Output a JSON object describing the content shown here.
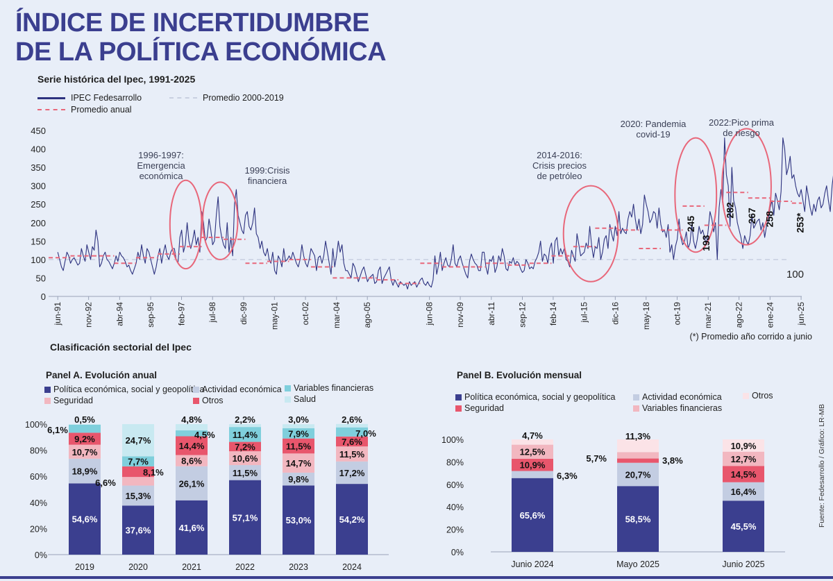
{
  "header": {
    "title_line1": "ÍNDICE DE INCERTIDUMBRE",
    "title_line2": "DE LA POLÍTICA ECONÓMICA",
    "subtitle": "Serie histórica del Ipec, 1991-2025"
  },
  "legend_top": {
    "ipec": "IPEC Fedesarrollo",
    "avg_2000_2019": "Promedio 2000-2019",
    "annual_avg": "Promedio anual"
  },
  "footnote": "(*) Promedio año corrido a junio",
  "section_title": "Clasificación sectorial del Ipec",
  "source": "Fuente: Fedesarrollo / Gráfico: LR-MB",
  "panel_a": {
    "title": "Panel A. Evolución anual",
    "legend": [
      "Política económica, social y geopolítica",
      "Actividad económica",
      "Variables financieras",
      "Seguridad",
      "Otros",
      "Salud"
    ]
  },
  "panel_b": {
    "title": "Panel B. Evolución mensual",
    "legend": [
      "Política económica, social y geopolítica",
      "Actividad económica",
      "Otros",
      "Seguridad",
      "Variables financieras"
    ]
  },
  "colors": {
    "navy": "#3b3f8f",
    "ipec_line": "#2d327f",
    "avg_dash": "#e8677a",
    "avg2000_dash": "#c8cfe0",
    "circle": "#e8677a",
    "politica": "#3b3f8f",
    "actividad": "#c3cde2",
    "financieras": "#7fcfdc",
    "seguridad": "#f2b7c0",
    "otros": "#e8566c",
    "salud": "#c8e9f1",
    "otros_b": "#fbe3e7"
  },
  "chart_data": [
    {
      "type": "line",
      "title": "Serie histórica del Ipec, 1991-2025",
      "y_ticks": [
        0,
        50,
        100,
        150,
        200,
        250,
        300,
        350,
        400,
        450
      ],
      "ylim": [
        0,
        450
      ],
      "x_tick_labels": [
        "jun-91",
        "nov-92",
        "abr-94",
        "sep-95",
        "feb-97",
        "jul-98",
        "dic-99",
        "may-01",
        "oct-02",
        "mar-04",
        "ago-05",
        "jun-08",
        "nov-09",
        "abr-11",
        "sep-12",
        "feb-14",
        "jul-15",
        "dic-16",
        "may-18",
        "oct-19",
        "mar-21",
        "ago-22",
        "ene-24",
        "jun-25"
      ],
      "x_tick_years": [
        1991.42,
        1992.83,
        1994.25,
        1995.67,
        1997.08,
        1998.5,
        1999.92,
        2001.33,
        2002.75,
        2004.17,
        2005.58,
        2008.42,
        2009.83,
        2011.25,
        2012.67,
        2014.08,
        2015.5,
        2016.92,
        2018.33,
        2019.75,
        2021.17,
        2022.58,
        2024.0,
        2025.42
      ],
      "x_range": [
        1991.0,
        2025.45
      ],
      "series": [
        {
          "name": "IPEC Fedesarrollo",
          "x_start": 1991.42,
          "x_step_months": 1,
          "values": [
            120,
            100,
            80,
            70,
            95,
            120,
            110,
            90,
            100,
            105,
            95,
            85,
            90,
            130,
            110,
            95,
            140,
            120,
            100,
            135,
            125,
            180,
            150,
            80,
            90,
            110,
            120,
            100,
            95,
            85,
            75,
            90,
            110,
            95,
            120,
            110,
            105,
            95,
            80,
            85,
            70,
            60,
            75,
            90,
            120,
            100,
            140,
            110,
            90,
            130,
            120,
            100,
            80,
            60,
            80,
            110,
            130,
            90,
            120,
            140,
            110,
            100,
            120,
            130,
            130,
            100,
            90,
            160,
            180,
            120,
            140,
            200,
            150,
            130,
            150,
            180,
            140,
            160,
            120,
            230,
            200,
            150,
            160,
            210,
            180,
            140,
            150,
            220,
            270,
            190,
            160,
            140,
            130,
            200,
            120,
            160,
            110,
            250,
            290,
            220,
            200,
            180,
            170,
            220,
            230,
            190,
            180,
            200,
            240,
            170,
            160,
            130,
            150,
            120,
            110,
            130,
            100,
            90,
            120,
            70,
            60,
            110,
            100,
            80,
            130,
            95,
            100,
            110,
            100,
            120,
            105,
            90,
            80,
            100,
            140,
            110,
            90,
            80,
            100,
            130,
            120,
            110,
            70,
            105,
            110,
            90,
            110,
            150,
            120,
            90,
            60,
            130,
            80,
            110,
            150,
            120,
            140,
            90,
            70,
            70,
            60,
            50,
            90,
            80,
            60,
            40,
            55,
            70,
            80,
            60,
            40,
            50,
            55,
            60,
            35,
            40,
            70,
            80,
            35,
            50,
            60,
            70,
            80,
            45,
            30,
            45,
            35,
            25,
            40,
            35,
            30,
            35,
            20,
            40,
            30,
            35,
            40,
            25,
            35,
            45,
            50,
            35,
            30,
            40,
            30,
            25,
            45,
            110,
            60,
            85,
            120,
            70,
            90,
            105,
            85,
            80,
            100,
            140,
            90,
            80,
            100,
            110,
            90,
            75,
            60,
            50,
            95,
            115,
            100,
            90,
            85,
            70,
            70,
            120,
            120,
            80,
            60,
            100,
            95,
            110,
            65,
            80,
            110,
            95,
            130,
            110,
            75,
            70,
            95,
            90,
            105,
            85,
            95,
            90,
            75,
            65,
            70,
            100,
            90,
            75,
            80,
            75,
            95,
            105,
            120,
            150,
            95,
            115,
            110,
            90,
            130,
            145,
            90,
            150,
            160,
            110,
            130,
            115,
            130,
            100,
            95,
            80,
            125,
            110,
            95,
            170,
            140,
            110,
            115,
            120,
            145,
            130,
            190,
            140,
            105,
            135,
            130,
            160,
            100,
            120,
            155,
            165,
            130,
            195,
            170,
            150,
            190,
            165,
            230,
            170,
            185,
            175,
            170,
            210,
            230,
            215,
            250,
            210,
            180,
            210,
            170,
            195,
            275,
            250,
            230,
            200,
            210,
            230,
            225,
            185,
            240,
            195,
            175,
            180,
            160,
            195,
            120,
            140,
            100,
            135,
            155,
            210,
            160,
            140,
            150,
            175,
            130,
            145,
            195,
            150,
            130,
            155,
            190,
            170,
            180,
            160,
            140,
            180,
            230,
            210,
            175,
            200,
            100,
            240,
            290,
            250,
            430,
            330,
            300,
            190,
            350,
            260,
            240,
            200,
            180,
            160,
            130,
            165,
            150,
            140,
            165,
            220,
            185,
            195,
            205,
            210,
            180,
            200,
            160,
            190,
            205,
            240,
            260,
            220,
            280,
            260,
            235,
            285,
            430,
            400,
            330,
            350,
            380,
            320,
            330,
            300,
            280,
            270,
            290,
            260,
            230,
            300,
            270,
            240,
            220,
            250,
            230,
            260,
            270,
            240,
            250,
            280,
            300,
            260,
            230,
            300,
            340,
            270,
            250,
            230,
            300,
            220,
            290,
            260,
            230,
            240,
            220,
            270,
            250,
            270,
            290,
            230,
            260,
            240,
            250,
            280,
            230,
            250,
            240,
            260,
            245,
            255,
            253
          ]
        },
        {
          "name": "Promedio anual",
          "points": [
            [
              1991,
              105
            ],
            [
              1992,
              110
            ],
            [
              1993,
              110
            ],
            [
              1994,
              90
            ],
            [
              1995,
              105
            ],
            [
              1996,
              115
            ],
            [
              1997,
              135
            ],
            [
              1998,
              160
            ],
            [
              1999,
              155
            ],
            [
              2000,
              90
            ],
            [
              2001,
              95
            ],
            [
              2002,
              100
            ],
            [
              2003,
              80
            ],
            [
              2004,
              50
            ],
            [
              2005,
              50
            ],
            [
              2006,
              45
            ],
            [
              2007,
              35
            ],
            [
              2008,
              90
            ],
            [
              2009,
              80
            ],
            [
              2010,
              80
            ],
            [
              2011,
              90
            ],
            [
              2012,
              85
            ],
            [
              2013,
              90
            ],
            [
              2014,
              110
            ],
            [
              2015,
              135
            ],
            [
              2016,
              185
            ],
            [
              2017,
              180
            ],
            [
              2018,
              130
            ],
            [
              2019,
              180
            ],
            [
              2020,
              245
            ],
            [
              2021,
              193
            ],
            [
              2022,
              282
            ],
            [
              2023,
              267
            ],
            [
              2024,
              258
            ],
            [
              2025,
              253
            ]
          ]
        },
        {
          "name": "Promedio 2000-2019",
          "value": 100
        }
      ],
      "annotations": [
        {
          "text": [
            "1996-1997:",
            "Emergencia",
            "económica"
          ]
        },
        {
          "text": [
            "1999:Crisis",
            "financiera"
          ]
        },
        {
          "text": [
            "2014-2016:",
            "Crisis precios",
            "de petróleo"
          ]
        },
        {
          "text": [
            "2020: Pandemia",
            "covid-19"
          ]
        },
        {
          "text": [
            "2022:Pico prima",
            "de riesgo"
          ]
        }
      ],
      "highlight_circles": [
        {
          "x": [
            1996.55,
            1998.0
          ],
          "y": [
            75,
            315
          ]
        },
        {
          "x": [
            1998.05,
            1999.65
          ],
          "y": [
            100,
            310
          ]
        },
        {
          "x": [
            2014.55,
            2017.05
          ],
          "y": [
            40,
            300
          ]
        },
        {
          "x": [
            2019.65,
            2021.55
          ],
          "y": [
            120,
            430
          ]
        },
        {
          "x": [
            2021.8,
            2024.05
          ],
          "y": [
            140,
            455
          ]
        }
      ],
      "value_labels": [
        {
          "text": "245",
          "x": 2020.4,
          "y": 245
        },
        {
          "text": "193",
          "x": 2021.1,
          "y": 193
        },
        {
          "text": "282",
          "x": 2022.2,
          "y": 282
        },
        {
          "text": "267",
          "x": 2023.2,
          "y": 267
        },
        {
          "text": "258",
          "x": 2024.0,
          "y": 258
        },
        {
          "text": "253*",
          "x": 2025.4,
          "y": 253
        },
        {
          "text": "100",
          "x": 2025.0,
          "y": 100
        }
      ]
    },
    {
      "type": "bar",
      "stacked": true,
      "title": "Panel A. Evolución anual",
      "categories": [
        "2019",
        "2020",
        "2021",
        "2022",
        "2023",
        "2024"
      ],
      "y_ticks": [
        "0%",
        "20%",
        "40%",
        "60%",
        "80%",
        "100%"
      ],
      "ylim": [
        0,
        100
      ],
      "series": [
        {
          "name": "Política económica, social y geopolítica",
          "values": [
            54.6,
            37.6,
            41.6,
            57.1,
            53.0,
            54.2
          ],
          "labels": [
            "54,6%",
            "37,6%",
            "41,6%",
            "57,1%",
            "53,0%",
            "54,2%"
          ]
        },
        {
          "name": "Actividad económica",
          "values": [
            18.9,
            15.3,
            26.1,
            11.5,
            9.8,
            17.2
          ],
          "labels": [
            "18,9%",
            "15,3%",
            "26,1%",
            "11,5%",
            "9,8%",
            "17,2%"
          ]
        },
        {
          "name": "Seguridad",
          "values": [
            10.7,
            6.6,
            8.6,
            10.6,
            14.7,
            11.5
          ],
          "labels": [
            "10,7%",
            "6,6%",
            "8,6%",
            "10,6%",
            "14,7%",
            "11,5%"
          ]
        },
        {
          "name": "Otros",
          "values": [
            9.2,
            8.1,
            14.4,
            7.2,
            11.5,
            7.6
          ],
          "labels": [
            "9,2%",
            "8,1%",
            "14,4%",
            "7,2%",
            "11,5%",
            "7,6%"
          ]
        },
        {
          "name": "Variables financieras",
          "values": [
            6.1,
            7.7,
            4.5,
            11.4,
            7.9,
            7.0
          ],
          "labels": [
            "6,1%",
            "7,7%",
            "4,5%",
            "11,4%",
            "7,9%",
            "7,0%"
          ]
        },
        {
          "name": "Salud",
          "values": [
            0.5,
            24.7,
            4.8,
            2.2,
            3.0,
            2.6
          ],
          "labels": [
            "0,5%",
            "24,7%",
            "4,8%",
            "2,2%",
            "3,0%",
            "2,6%"
          ]
        }
      ]
    },
    {
      "type": "bar",
      "stacked": true,
      "title": "Panel B. Evolución mensual",
      "categories": [
        "Junio 2024",
        "Mayo 2025",
        "Junio 2025"
      ],
      "y_ticks": [
        "0%",
        "20%",
        "40%",
        "60%",
        "80%",
        "100%"
      ],
      "ylim": [
        0,
        100
      ],
      "series": [
        {
          "name": "Política económica, social y geopolítica",
          "values": [
            65.6,
            58.5,
            45.5
          ],
          "labels": [
            "65,6%",
            "58,5%",
            "45,5%"
          ]
        },
        {
          "name": "Actividad económica",
          "values": [
            6.3,
            20.7,
            16.4
          ],
          "labels": [
            "6,3%",
            "20,7%",
            "16,4%"
          ]
        },
        {
          "name": "Seguridad",
          "values": [
            10.9,
            3.8,
            14.5
          ],
          "labels": [
            "10,9%",
            "3,8%",
            "14,5%"
          ]
        },
        {
          "name": "Variables financieras",
          "values": [
            12.5,
            5.7,
            12.7
          ],
          "labels": [
            "12,5%",
            "5,7%",
            "12,7%"
          ]
        },
        {
          "name": "Otros",
          "values": [
            4.7,
            11.3,
            10.9
          ],
          "labels": [
            "4,7%",
            "11,3%",
            "10,9%"
          ]
        }
      ]
    }
  ]
}
